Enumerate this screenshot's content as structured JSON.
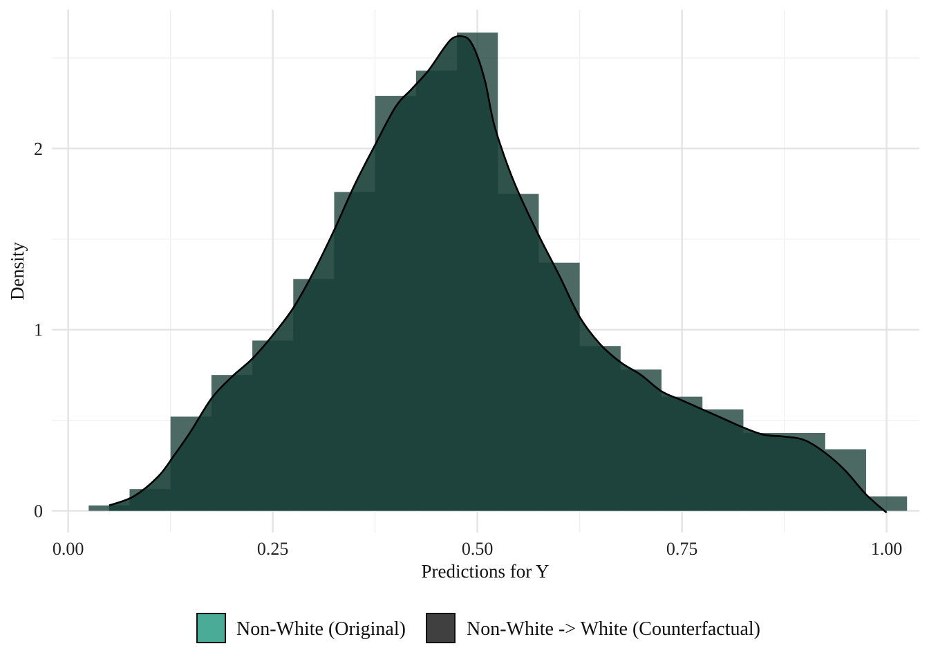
{
  "chart_data": {
    "type": "histogram",
    "xlabel": "Predictions for Y",
    "ylabel": "Density",
    "xlim": [
      -0.02,
      1.04
    ],
    "ylim": [
      -0.12,
      2.82
    ],
    "x_ticks": [
      0.0,
      0.25,
      0.5,
      0.75,
      1.0
    ],
    "x_tick_labels": [
      "0.00",
      "0.25",
      "0.50",
      "0.75",
      "1.00"
    ],
    "y_ticks": [
      0,
      1,
      2
    ],
    "y_tick_labels": [
      "0",
      "1",
      "2"
    ],
    "grid": true,
    "legend_position": "bottom",
    "legend": [
      {
        "label": "Non-White (Original)",
        "color": "#4aab97"
      },
      {
        "label": "Non-White -> White (Counterfactual)",
        "color": "#404040"
      }
    ],
    "histogram": {
      "bin_width": 0.05,
      "bin_edges": [
        0.025,
        0.075,
        0.125,
        0.175,
        0.225,
        0.275,
        0.325,
        0.375,
        0.425,
        0.475,
        0.525,
        0.575,
        0.625,
        0.675,
        0.725,
        0.775,
        0.825,
        0.875,
        0.925,
        0.975,
        1.025
      ],
      "values": [
        0.03,
        0.12,
        0.52,
        0.75,
        0.94,
        1.28,
        1.76,
        2.29,
        2.43,
        2.64,
        1.75,
        1.37,
        0.91,
        0.78,
        0.63,
        0.56,
        0.43,
        0.43,
        0.34,
        0.08
      ],
      "color": "#1a3f38"
    },
    "density_curve": {
      "x": [
        0.05,
        0.08,
        0.11,
        0.13,
        0.15,
        0.175,
        0.2,
        0.225,
        0.25,
        0.275,
        0.3,
        0.325,
        0.35,
        0.375,
        0.4,
        0.42,
        0.44,
        0.46,
        0.47,
        0.48,
        0.49,
        0.5,
        0.51,
        0.52,
        0.535,
        0.55,
        0.575,
        0.6,
        0.625,
        0.65,
        0.675,
        0.7,
        0.725,
        0.75,
        0.775,
        0.8,
        0.825,
        0.85,
        0.875,
        0.9,
        0.925,
        0.95,
        0.975,
        1.0
      ],
      "y": [
        0.03,
        0.08,
        0.19,
        0.31,
        0.44,
        0.62,
        0.74,
        0.84,
        0.97,
        1.12,
        1.32,
        1.55,
        1.8,
        2.02,
        2.23,
        2.33,
        2.43,
        2.56,
        2.61,
        2.62,
        2.6,
        2.51,
        2.36,
        2.14,
        1.93,
        1.76,
        1.52,
        1.3,
        1.07,
        0.92,
        0.82,
        0.75,
        0.66,
        0.61,
        0.56,
        0.51,
        0.46,
        0.42,
        0.41,
        0.39,
        0.32,
        0.22,
        0.09,
        -0.01
      ]
    }
  }
}
